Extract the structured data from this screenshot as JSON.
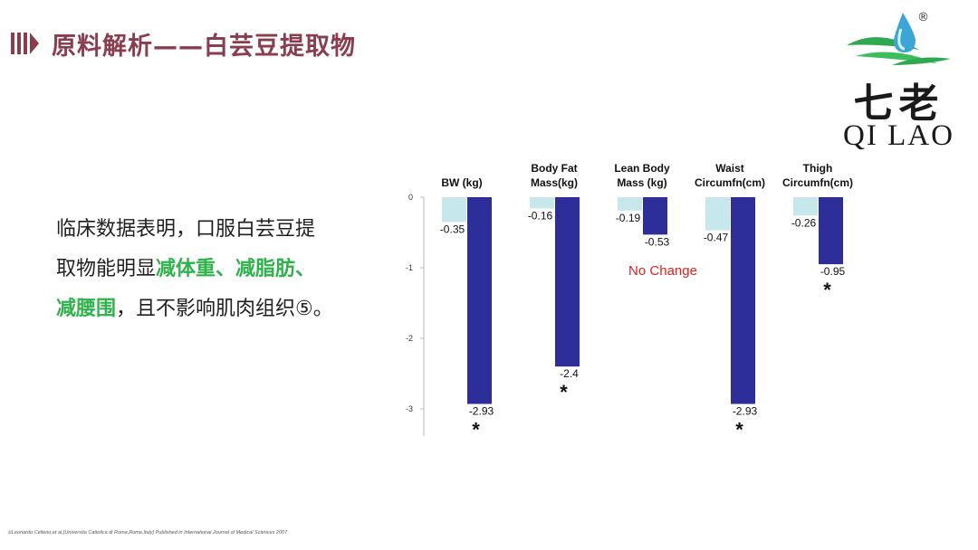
{
  "slide": {
    "title": "原料解析——白芸豆提取物",
    "body": {
      "line1": "临床数据表明，口服白芸豆提",
      "line2_pre": "取物能明显",
      "line2_hl": "减体重、减脂肪、",
      "line3_hl": "减腰围",
      "line3_post": "，且不影响肌肉组织⑤。"
    },
    "footnote": "①Leonardo Celleno,et al.[Universita Cattolica di Roma,Rome,Italy] Published in International Journal of Medical Sciences 2007"
  },
  "logo": {
    "cn": "七老",
    "en": "QI LAO",
    "reg": "®"
  },
  "colors": {
    "title": "#8a3d4e",
    "highlight": "#2db34a",
    "placebo_bar": "#c6e8ec",
    "treatment_bar": "#2e2e9a",
    "no_change": "#e0201e"
  },
  "chart_data": {
    "type": "bar",
    "categories": [
      [
        "BW (kg)"
      ],
      [
        "Body Fat",
        "Mass(kg)"
      ],
      [
        "Lean Body",
        "Mass (kg)"
      ],
      [
        "Waist",
        "Circumfn(cm)"
      ],
      [
        "Thigh",
        "Circumfn(cm)"
      ]
    ],
    "series": [
      {
        "values": [
          -0.35,
          -0.16,
          -0.19,
          -0.47,
          -0.26
        ]
      },
      {
        "values": [
          -2.93,
          -2.4,
          -0.53,
          -2.93,
          -0.95
        ]
      }
    ],
    "value_labels": [
      [
        "-0.35",
        "-0.16",
        "-0.19",
        "-0.47",
        "-0.26"
      ],
      [
        "-2.93",
        "-2.4",
        "-0.53",
        "-2.93",
        "-0.95"
      ]
    ],
    "significant": [
      true,
      true,
      false,
      true,
      true
    ],
    "significance_mark": "*",
    "annotation": "No Change",
    "annotation_category": 2,
    "ylim": [
      -3,
      0
    ],
    "yticks": [
      0,
      -1,
      -2,
      -3
    ],
    "ytick_labels": [
      "0",
      "-1",
      "-2",
      "-3"
    ]
  }
}
